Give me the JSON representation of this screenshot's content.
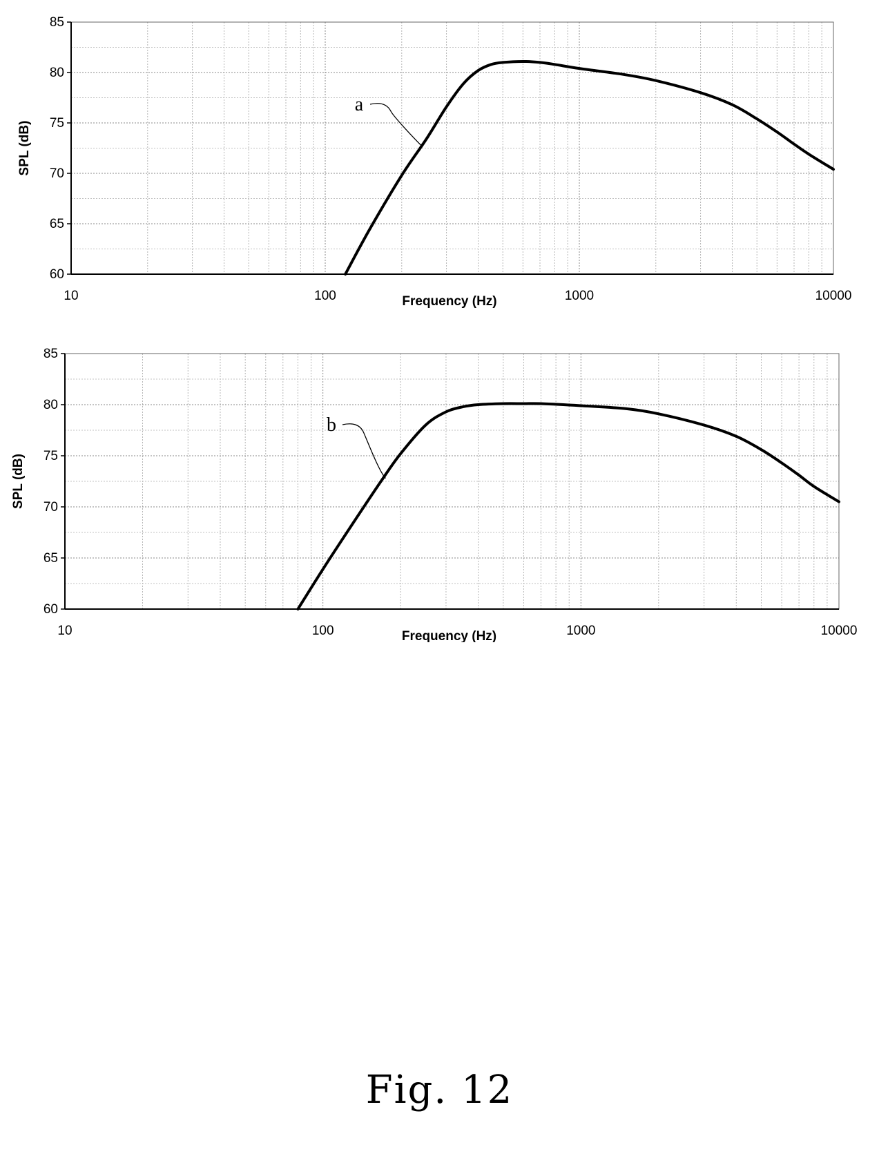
{
  "figure": {
    "caption": "Fig. 12"
  },
  "chart_data": [
    {
      "type": "line",
      "ylabel": "SPL (dB)",
      "xlabel": "Frequency (Hz)",
      "xscale": "log",
      "xlim": [
        10,
        10000
      ],
      "ylim": [
        60,
        85
      ],
      "xticks": [
        "10",
        "100",
        "1000",
        "10000"
      ],
      "yticks": [
        "60",
        "65",
        "70",
        "75",
        "80",
        "85"
      ],
      "grid": true,
      "series": [
        {
          "name": "a",
          "x": [
            120,
            150,
            200,
            250,
            300,
            350,
            400,
            450,
            500,
            600,
            700,
            800,
            1000,
            1500,
            2000,
            3000,
            4000,
            5000,
            6000,
            7000,
            8000,
            10000
          ],
          "y": [
            60,
            64.5,
            69.8,
            73.4,
            76.6,
            78.9,
            80.2,
            80.8,
            81.0,
            81.1,
            81.0,
            80.8,
            80.4,
            79.8,
            79.2,
            78.0,
            76.8,
            75.4,
            74.1,
            72.9,
            71.9,
            70.4
          ]
        }
      ]
    },
    {
      "type": "line",
      "ylabel": "SPL (dB)",
      "xlabel": "Frequency (Hz)",
      "xscale": "log",
      "xlim": [
        10,
        10000
      ],
      "ylim": [
        60,
        85
      ],
      "xticks": [
        "10",
        "100",
        "1000",
        "10000"
      ],
      "yticks": [
        "60",
        "65",
        "70",
        "75",
        "80",
        "85"
      ],
      "grid": true,
      "series": [
        {
          "name": "b",
          "x": [
            80,
            100,
            130,
            170,
            200,
            250,
            300,
            350,
            400,
            500,
            600,
            700,
            1000,
            1500,
            2000,
            3000,
            4000,
            5000,
            6000,
            7000,
            8000,
            10000
          ],
          "y": [
            60,
            63.9,
            68.3,
            72.7,
            75.2,
            78.0,
            79.3,
            79.8,
            80.0,
            80.1,
            80.1,
            80.1,
            79.9,
            79.6,
            79.1,
            78.0,
            76.9,
            75.6,
            74.3,
            73.1,
            72.0,
            70.5
          ]
        }
      ]
    }
  ]
}
